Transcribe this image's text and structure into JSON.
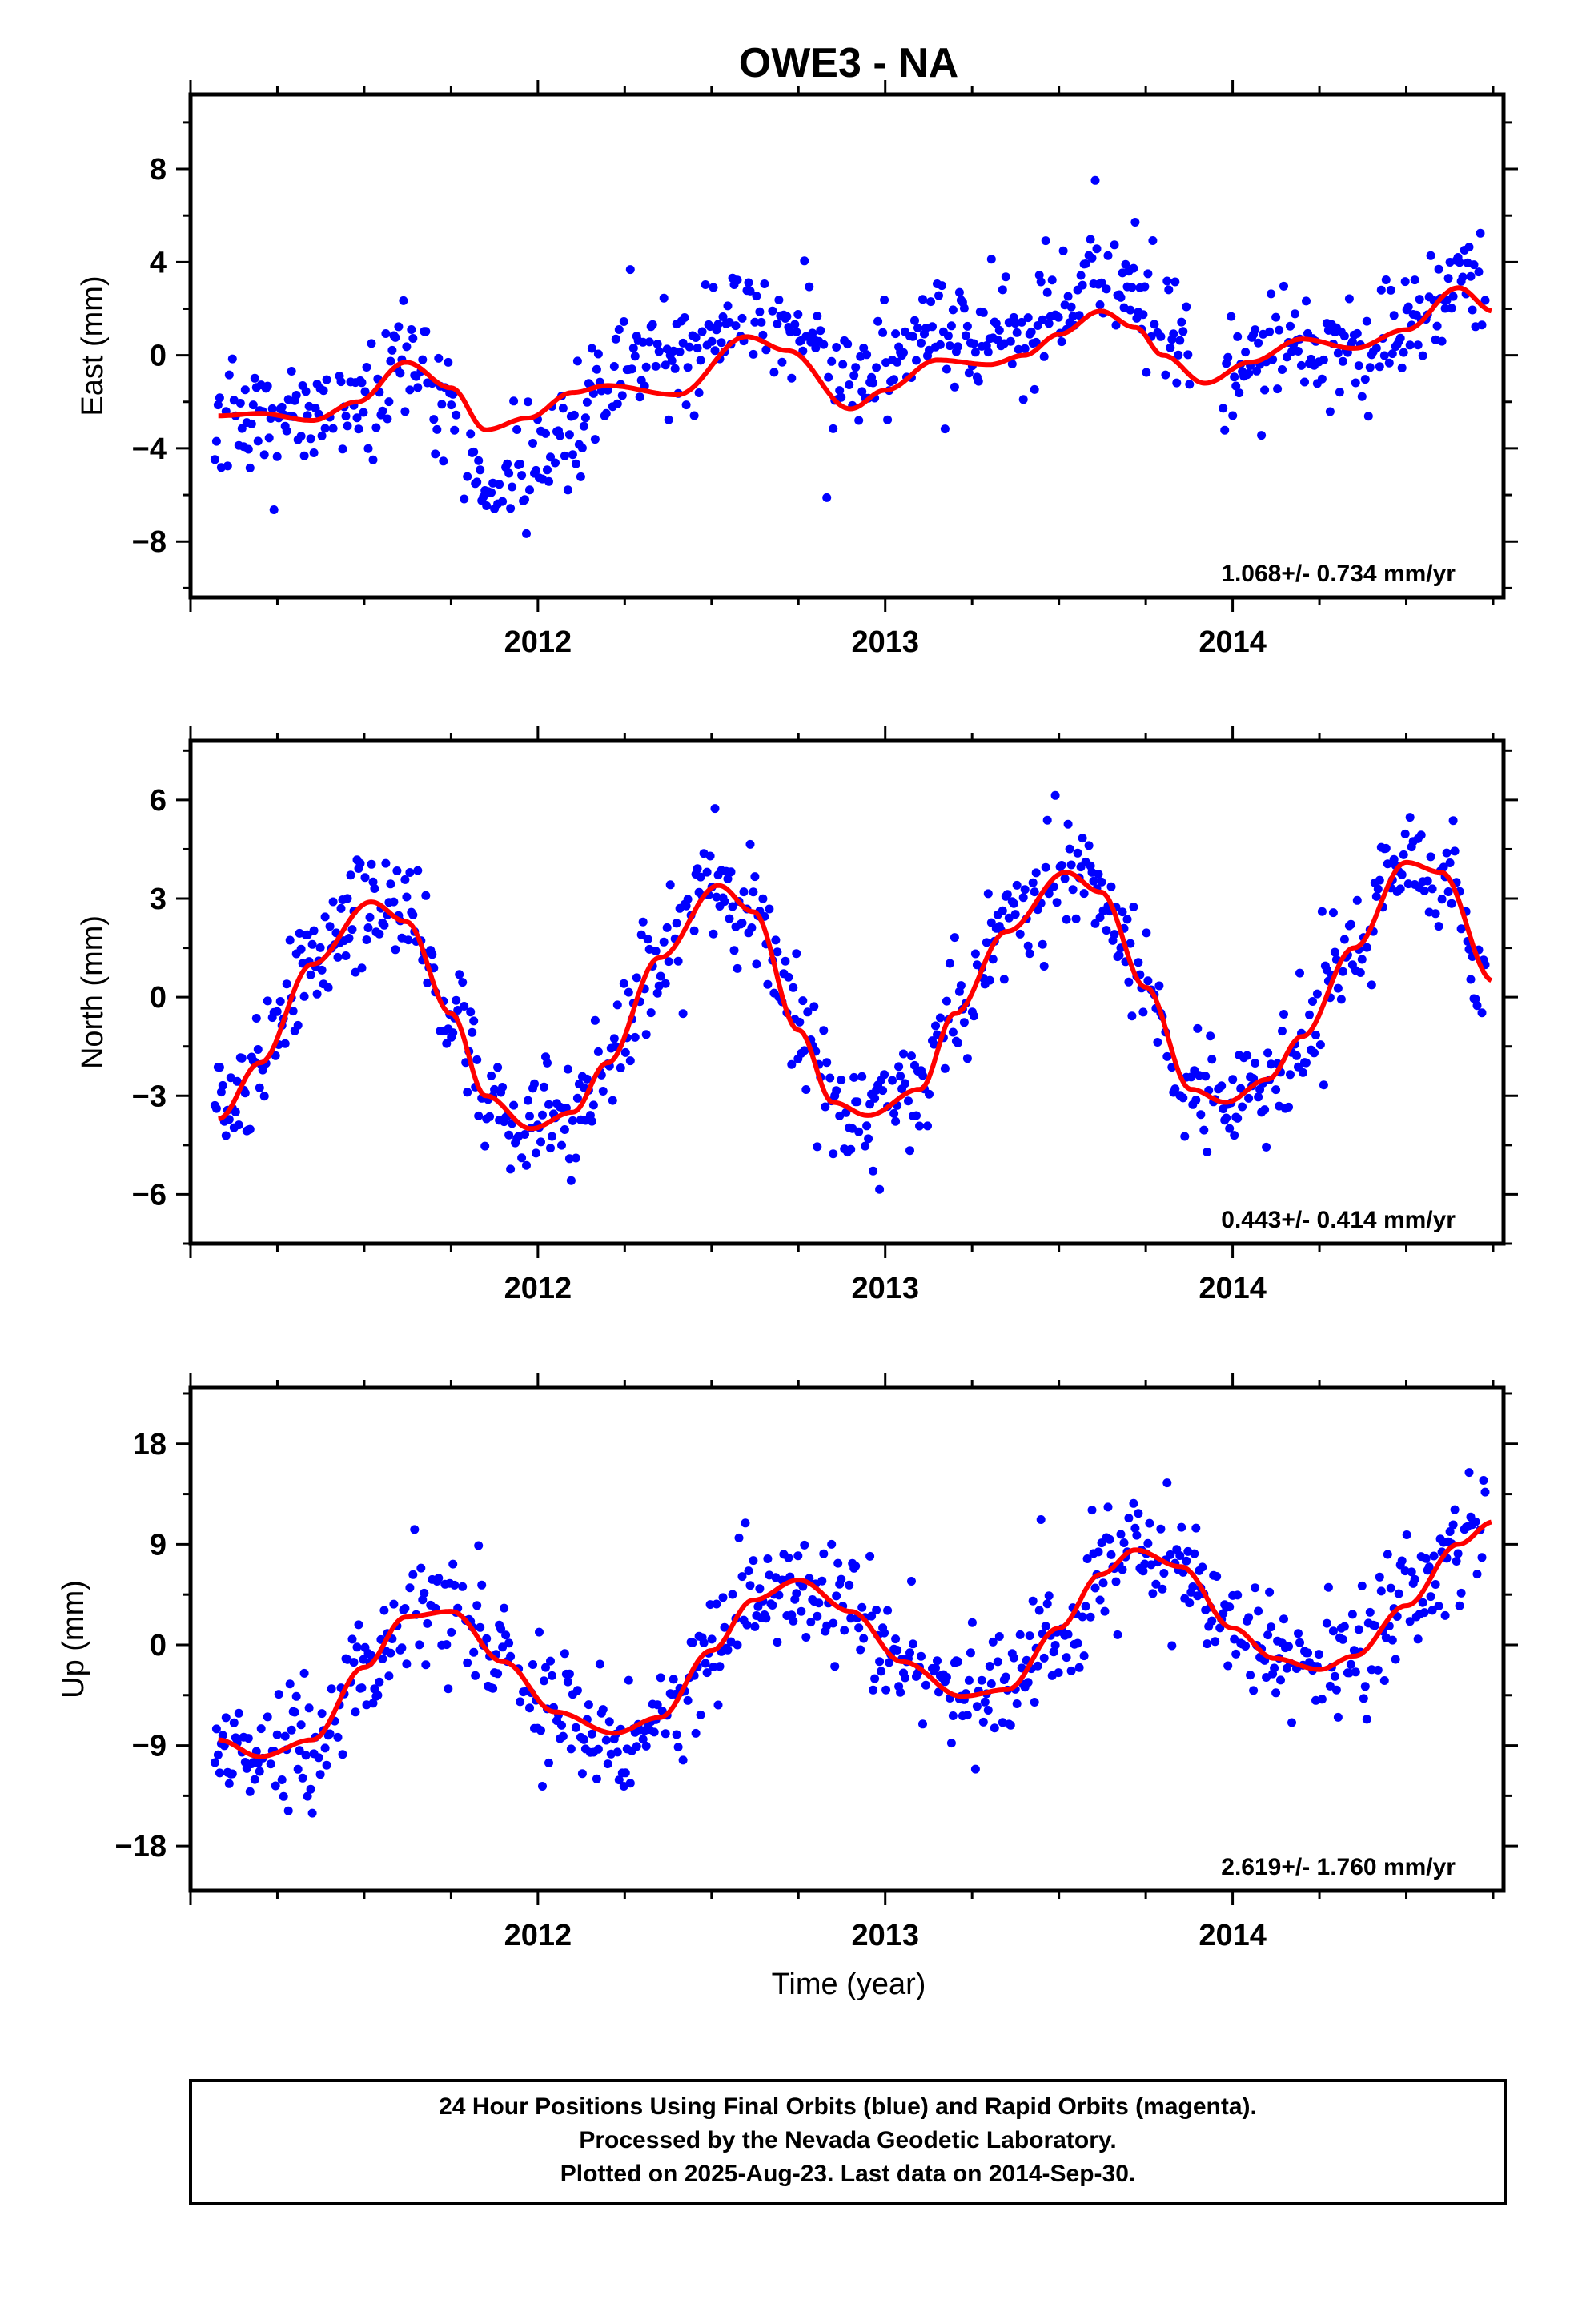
{
  "title": "OWE3 - NA",
  "colors": {
    "final": "#0000ff",
    "rapid": "#ff00ff",
    "model": "#ff0000",
    "axis": "#000000"
  },
  "caption": {
    "lines": [
      "24 Hour Positions Using Final Orbits (blue) and Rapid Orbits (magenta).",
      "Processed by the Nevada Geodetic Laboratory.",
      "Plotted on 2025-Aug-23. Last data on 2014-Sep-30."
    ]
  },
  "chart_data": [
    {
      "type": "scatter",
      "name": "east",
      "ylabel": "East (mm)",
      "xlabel": "",
      "xlim": [
        2011.0,
        2014.78
      ],
      "ylim": [
        -10.4,
        11.2
      ],
      "x_ticks": [
        2012,
        2013,
        2014
      ],
      "x_tick_labels": [
        "2012",
        "2013",
        "2014"
      ],
      "y_ticks": [
        -8,
        -4,
        0,
        4,
        8
      ],
      "y_tick_labels": [
        "−8",
        "−4",
        "0",
        "4",
        "8"
      ],
      "rate_label": "1.068+/- 0.734 mm/yr",
      "trend_points": [
        [
          2011.08,
          -2.6
        ],
        [
          2011.2,
          -2.5
        ],
        [
          2011.35,
          -2.8
        ],
        [
          2011.48,
          -2.0
        ],
        [
          2011.62,
          -0.3
        ],
        [
          2011.75,
          -1.4
        ],
        [
          2011.85,
          -3.2
        ],
        [
          2011.97,
          -2.7
        ],
        [
          2012.1,
          -1.6
        ],
        [
          2012.2,
          -1.3
        ],
        [
          2012.4,
          -1.7
        ],
        [
          2012.6,
          0.8
        ],
        [
          2012.72,
          0.2
        ],
        [
          2012.9,
          -2.3
        ],
        [
          2013.0,
          -1.5
        ],
        [
          2013.15,
          -0.2
        ],
        [
          2013.3,
          -0.4
        ],
        [
          2013.4,
          0.0
        ],
        [
          2013.5,
          0.9
        ],
        [
          2013.62,
          1.9
        ],
        [
          2013.72,
          1.2
        ],
        [
          2013.8,
          0.0
        ],
        [
          2013.92,
          -1.2
        ],
        [
          2014.05,
          -0.3
        ],
        [
          2014.2,
          0.7
        ],
        [
          2014.35,
          0.3
        ],
        [
          2014.5,
          1.1
        ],
        [
          2014.65,
          2.9
        ],
        [
          2014.75,
          1.9
        ]
      ]
    },
    {
      "type": "scatter",
      "name": "north",
      "ylabel": "North (mm)",
      "xlabel": "",
      "xlim": [
        2011.0,
        2014.78
      ],
      "ylim": [
        -7.5,
        7.8
      ],
      "x_ticks": [
        2012,
        2013,
        2014
      ],
      "x_tick_labels": [
        "2012",
        "2013",
        "2014"
      ],
      "y_ticks": [
        -6,
        -3,
        0,
        3,
        6
      ],
      "y_tick_labels": [
        "−6",
        "−3",
        "0",
        "3",
        "6"
      ],
      "rate_label": "0.443+/- 0.414 mm/yr",
      "trend_points": [
        [
          2011.08,
          -3.7
        ],
        [
          2011.2,
          -2.0
        ],
        [
          2011.35,
          1.0
        ],
        [
          2011.52,
          2.9
        ],
        [
          2011.62,
          2.3
        ],
        [
          2011.75,
          -0.5
        ],
        [
          2011.85,
          -3.0
        ],
        [
          2011.98,
          -4.0
        ],
        [
          2012.1,
          -3.5
        ],
        [
          2012.2,
          -2.0
        ],
        [
          2012.35,
          1.2
        ],
        [
          2012.52,
          3.4
        ],
        [
          2012.62,
          2.6
        ],
        [
          2012.75,
          -1.0
        ],
        [
          2012.85,
          -3.2
        ],
        [
          2012.95,
          -3.6
        ],
        [
          2013.1,
          -2.8
        ],
        [
          2013.2,
          -0.5
        ],
        [
          2013.35,
          2.0
        ],
        [
          2013.52,
          3.8
        ],
        [
          2013.62,
          3.2
        ],
        [
          2013.75,
          0.3
        ],
        [
          2013.88,
          -2.8
        ],
        [
          2013.98,
          -3.2
        ],
        [
          2014.1,
          -2.5
        ],
        [
          2014.2,
          -1.2
        ],
        [
          2014.35,
          1.5
        ],
        [
          2014.5,
          4.1
        ],
        [
          2014.6,
          3.8
        ],
        [
          2014.75,
          0.5
        ]
      ]
    },
    {
      "type": "scatter",
      "name": "up",
      "ylabel": "Up (mm)",
      "xlabel": "Time (year)",
      "xlim": [
        2011.0,
        2014.78
      ],
      "ylim": [
        -22,
        23
      ],
      "x_ticks": [
        2012,
        2013,
        2014
      ],
      "x_tick_labels": [
        "2012",
        "2013",
        "2014"
      ],
      "y_ticks": [
        -18,
        -9,
        0,
        9,
        18
      ],
      "y_tick_labels": [
        "−18",
        "−9",
        "0",
        "9",
        "18"
      ],
      "rate_label": "2.619+/- 1.760 mm/yr",
      "trend_points": [
        [
          2011.08,
          -8.5
        ],
        [
          2011.2,
          -10.0
        ],
        [
          2011.35,
          -8.5
        ],
        [
          2011.5,
          -2.0
        ],
        [
          2011.62,
          2.5
        ],
        [
          2011.75,
          3.0
        ],
        [
          2011.9,
          -1.5
        ],
        [
          2012.05,
          -6.0
        ],
        [
          2012.22,
          -7.9
        ],
        [
          2012.35,
          -6.5
        ],
        [
          2012.5,
          -0.5
        ],
        [
          2012.62,
          4.0
        ],
        [
          2012.75,
          5.8
        ],
        [
          2012.9,
          3.0
        ],
        [
          2013.05,
          -1.5
        ],
        [
          2013.22,
          -4.6
        ],
        [
          2013.35,
          -4.0
        ],
        [
          2013.5,
          1.5
        ],
        [
          2013.62,
          6.3
        ],
        [
          2013.72,
          8.5
        ],
        [
          2013.85,
          7.0
        ],
        [
          2014.0,
          1.5
        ],
        [
          2014.12,
          -1.2
        ],
        [
          2014.25,
          -2.2
        ],
        [
          2014.35,
          -1.0
        ],
        [
          2014.5,
          3.5
        ],
        [
          2014.65,
          9.0
        ],
        [
          2014.75,
          11.0
        ]
      ]
    }
  ]
}
